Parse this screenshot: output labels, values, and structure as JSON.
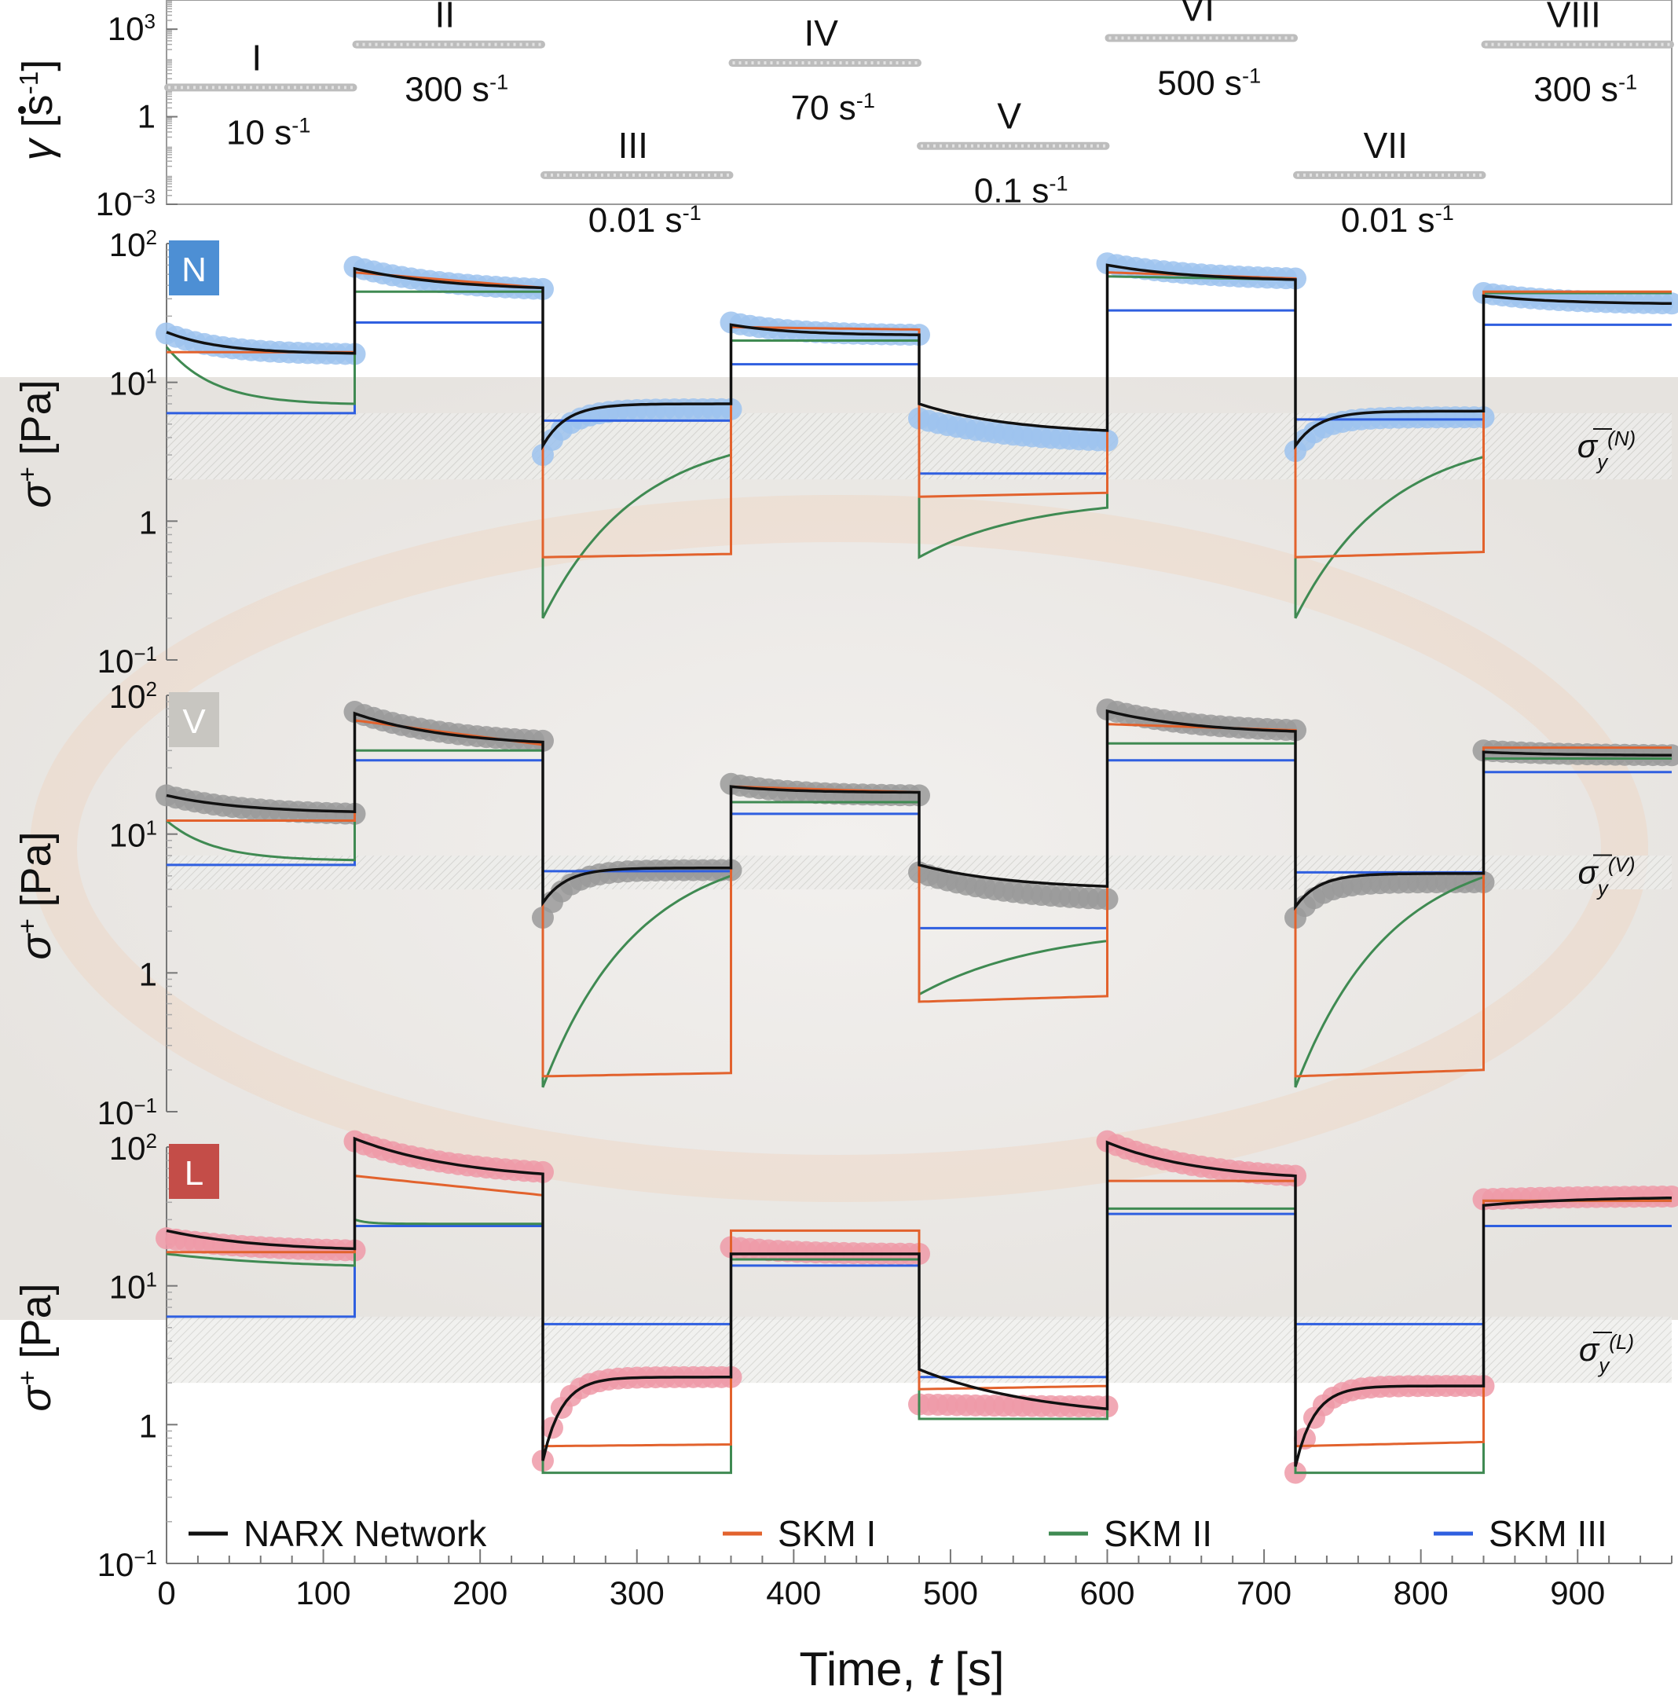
{
  "chart_data": {
    "type": "line",
    "xlabel_prefix": "Time, ",
    "xlabel_var": "t",
    "xlabel_unit": " [s]",
    "xlim": [
      0,
      960
    ],
    "xticks": [
      0,
      100,
      200,
      300,
      400,
      500,
      600,
      700,
      800,
      900
    ],
    "xscale": "linear",
    "rate_panel": {
      "ylabel_var": "γ",
      "ylabel_unit": "[s",
      "ylabel_exp": "-1",
      "ylabel_close": "]",
      "yscale": "log",
      "ylim": [
        0.001,
        10000
      ],
      "yticks": [
        {
          "v": 1000,
          "base": "10",
          "exp": "3"
        },
        {
          "v": 1,
          "base": "1",
          "exp": ""
        },
        {
          "v": 0.001,
          "base": "10",
          "exp": "−3"
        }
      ],
      "steps": [
        {
          "label": "I",
          "rate": 10,
          "rate_text": "10 s",
          "exp": "-1",
          "t0": 0,
          "t1": 120
        },
        {
          "label": "II",
          "rate": 300,
          "rate_text": "300 s",
          "exp": "-1",
          "t0": 120,
          "t1": 240
        },
        {
          "label": "III",
          "rate": 0.01,
          "rate_text": "0.01 s",
          "exp": "-1",
          "t0": 240,
          "t1": 360
        },
        {
          "label": "IV",
          "rate": 70,
          "rate_text": "70 s",
          "exp": "-1",
          "t0": 360,
          "t1": 480
        },
        {
          "label": "V",
          "rate": 0.1,
          "rate_text": "0.1 s",
          "exp": "-1",
          "t0": 480,
          "t1": 600
        },
        {
          "label": "VI",
          "rate": 500,
          "rate_text": "500 s",
          "exp": "-1",
          "t0": 600,
          "t1": 720
        },
        {
          "label": "VII",
          "rate": 0.01,
          "rate_text": "0.01 s",
          "exp": "-1",
          "t0": 720,
          "t1": 840
        },
        {
          "label": "VIII",
          "rate": 300,
          "rate_text": "300 s",
          "exp": "-1",
          "t0": 840,
          "t1": 960
        }
      ]
    },
    "stress_yscale": "log",
    "stress_ylim": [
      0.1,
      100
    ],
    "stress_yticks": [
      {
        "v": 100,
        "base": "10",
        "exp": "2"
      },
      {
        "v": 10,
        "base": "10",
        "exp": "1"
      },
      {
        "v": 1,
        "base": "1",
        "exp": ""
      },
      {
        "v": 0.1,
        "base": "10",
        "exp": "−1"
      }
    ],
    "stress_ylabel_var": "σ",
    "stress_ylabel_sup": "+",
    "stress_ylabel_unit": "[Pa]",
    "legend": {
      "placement": "bottom",
      "entries": [
        {
          "name": "NARX Network",
          "color": "#111111"
        },
        {
          "name": "SKM I",
          "color": "#e2622d"
        },
        {
          "name": "SKM II",
          "color": "#3f8a52"
        },
        {
          "name": "SKM III",
          "color": "#2f5fe0"
        }
      ]
    },
    "panels": [
      {
        "badge": "N",
        "badge_color": "#4d8fd4",
        "marker_color": "#9ec3ee",
        "yield_label_sub": "y",
        "yield_label_sup": "(N)",
        "yield_band": [
          2,
          6
        ],
        "segments": [
          {
            "data": [
              22.5,
              16.0
            ],
            "narx": [
              23,
              16.2
            ],
            "narx_tau": 35,
            "skm1": [
              16.5,
              16.5
            ],
            "skm2": [
              18,
              7.0
            ],
            "skm2_tau": 30,
            "skm3": [
              6.0,
              6.0
            ]
          },
          {
            "data": [
              68,
              47
            ],
            "narx": [
              66,
              48
            ],
            "narx_tau": 60,
            "skm1": [
              62,
              48
            ],
            "skm2": [
              45,
              45
            ],
            "skm3": [
              27,
              27
            ]
          },
          {
            "data": [
              3.0,
              6.4
            ],
            "narx": [
              3.5,
              7.0
            ],
            "narx_tau": 15,
            "skm1": [
              0.55,
              0.58
            ],
            "skm2": [
              0.2,
              3.0
            ],
            "skm2_tau": 60,
            "skm3": [
              5.3,
              5.3
            ]
          },
          {
            "data": [
              27,
              22
            ],
            "narx": [
              26,
              22
            ],
            "narx_tau": 40,
            "skm1": [
              25,
              24
            ],
            "skm2": [
              20,
              20
            ],
            "skm3": [
              13.5,
              13.5
            ]
          },
          {
            "data": [
              5.5,
              3.8
            ],
            "narx": [
              7.0,
              4.5
            ],
            "narx_tau": 60,
            "skm1": [
              1.5,
              1.6
            ],
            "skm2": [
              0.55,
              1.25
            ],
            "skm2_tau": 70,
            "skm3": [
              2.2,
              2.2
            ]
          },
          {
            "data": [
              72,
              56
            ],
            "narx": [
              70,
              55
            ],
            "narx_tau": 60,
            "skm1": [
              62,
              56
            ],
            "skm2": [
              58,
              55
            ],
            "skm3": [
              33,
              33
            ]
          },
          {
            "data": [
              3.2,
              5.6
            ],
            "narx": [
              3.5,
              6.2
            ],
            "narx_tau": 15,
            "skm1": [
              0.55,
              0.6
            ],
            "skm2": [
              0.2,
              2.9
            ],
            "skm2_tau": 60,
            "skm3": [
              5.4,
              5.4
            ]
          },
          {
            "data": [
              44,
              37
            ],
            "narx": [
              42,
              37
            ],
            "narx_tau": 50,
            "skm1": [
              45,
              45
            ],
            "skm2": [
              44,
              44
            ],
            "skm3": [
              26,
              26
            ]
          }
        ]
      },
      {
        "badge": "V",
        "badge_color": "#c8c6c1",
        "marker_color": "#9a9a9a",
        "yield_label_sub": "y",
        "yield_label_sup": "(V)",
        "yield_band": [
          4,
          7
        ],
        "segments": [
          {
            "data": [
              19,
              14
            ],
            "narx": [
              19,
              14.5
            ],
            "narx_tau": 50,
            "skm1": [
              12.5,
              12.5
            ],
            "skm2": [
              12.5,
              6.5
            ],
            "skm2_tau": 30,
            "skm3": [
              6.0,
              6.0
            ]
          },
          {
            "data": [
              76,
              47
            ],
            "narx": [
              74,
              46
            ],
            "narx_tau": 60,
            "skm1": [
              66,
              44
            ],
            "skm2": [
              40,
              40
            ],
            "skm3": [
              34,
              34
            ]
          },
          {
            "data": [
              2.5,
              5.5
            ],
            "narx": [
              3.2,
              5.7
            ],
            "narx_tau": 15,
            "skm1": [
              0.18,
              0.19
            ],
            "skm2": [
              0.15,
              5.0
            ],
            "skm2_tau": 60,
            "skm3": [
              5.4,
              5.4
            ]
          },
          {
            "data": [
              23,
              19
            ],
            "narx": [
              22,
              20
            ],
            "narx_tau": 40,
            "skm1": [
              22,
              20
            ],
            "skm2": [
              17,
              17
            ],
            "skm3": [
              14,
              14
            ]
          },
          {
            "data": [
              5.3,
              3.4
            ],
            "narx": [
              6.0,
              4.2
            ],
            "narx_tau": 60,
            "skm1": [
              0.62,
              0.68
            ],
            "skm2": [
              0.7,
              1.7
            ],
            "skm2_tau": 80,
            "skm3": [
              2.1,
              2.1
            ]
          },
          {
            "data": [
              79,
              56
            ],
            "narx": [
              77,
              55
            ],
            "narx_tau": 60,
            "skm1": [
              62,
              56
            ],
            "skm2": [
              45,
              45
            ],
            "skm3": [
              34,
              34
            ]
          },
          {
            "data": [
              2.5,
              4.5
            ],
            "narx": [
              3.0,
              5.2
            ],
            "narx_tau": 15,
            "skm1": [
              0.18,
              0.2
            ],
            "skm2": [
              0.15,
              4.9
            ],
            "skm2_tau": 60,
            "skm3": [
              5.3,
              5.3
            ]
          },
          {
            "data": [
              40,
              37
            ],
            "narx": [
              39,
              37
            ],
            "narx_tau": 50,
            "skm1": [
              42,
              42
            ],
            "skm2": [
              35,
              35
            ],
            "skm3": [
              28,
              28
            ]
          }
        ]
      },
      {
        "badge": "L",
        "badge_color": "#c44d48",
        "marker_color": "#ef9aa8",
        "yield_label_sub": "y",
        "yield_label_sup": "(L)",
        "yield_band": [
          2,
          6
        ],
        "segments": [
          {
            "data": [
              22,
              18
            ],
            "narx": [
              25,
              18.5
            ],
            "narx_tau": 60,
            "skm1": [
              17.5,
              17.5
            ],
            "skm2": [
              17,
              14
            ],
            "skm2_tau": 80,
            "skm3": [
              6.0,
              6.0
            ]
          },
          {
            "data": [
              110,
              66
            ],
            "narx": [
              115,
              64
            ],
            "narx_tau": 70,
            "skm1": [
              62,
              45
            ],
            "skm2": [
              30,
              28
            ],
            "skm2_tau": 8,
            "skm3": [
              27,
              27
            ]
          },
          {
            "data": [
              0.55,
              2.2
            ],
            "narx": [
              0.55,
              2.2
            ],
            "narx_tau": 12,
            "skm1": [
              0.7,
              0.72
            ],
            "skm2": [
              0.45,
              0.45
            ],
            "skm3": [
              5.3,
              5.3
            ]
          },
          {
            "data": [
              19,
              17
            ],
            "narx": [
              17,
              17
            ],
            "narx_tau": 40,
            "skm1": [
              25,
              25
            ],
            "skm2": [
              15.5,
              15.5
            ],
            "skm3": [
              14,
              14
            ]
          },
          {
            "data": [
              1.4,
              1.35
            ],
            "narx": [
              2.5,
              1.3
            ],
            "narx_tau": 80,
            "skm1": [
              1.8,
              1.9
            ],
            "skm2": [
              1.1,
              1.1
            ],
            "skm3": [
              2.2,
              2.2
            ]
          },
          {
            "data": [
              110,
              62
            ],
            "narx": [
              108,
              62
            ],
            "narx_tau": 60,
            "skm1": [
              57,
              57
            ],
            "skm2": [
              36,
              36
            ],
            "skm3": [
              33,
              33
            ]
          },
          {
            "data": [
              0.45,
              1.9
            ],
            "narx": [
              0.5,
              1.9
            ],
            "narx_tau": 12,
            "skm1": [
              0.7,
              0.75
            ],
            "skm2": [
              0.45,
              0.45
            ],
            "skm3": [
              5.3,
              5.3
            ]
          },
          {
            "data": [
              42,
              44
            ],
            "narx": [
              38,
              43
            ],
            "narx_tau": 60,
            "skm1": [
              41,
              41
            ],
            "skm2": [
              41,
              41
            ],
            "skm3": [
              27,
              27
            ]
          }
        ]
      }
    ]
  }
}
